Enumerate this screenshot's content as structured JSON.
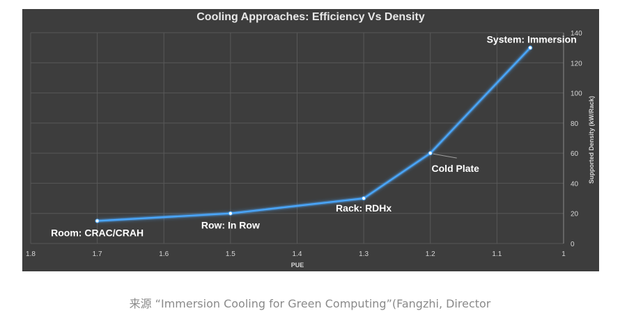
{
  "chart_data": {
    "type": "line",
    "title": "Cooling Approaches: Efficiency Vs Density",
    "xlabel": "PUE",
    "ylabel": "Supported Density (kW/Rack)",
    "xlim": [
      1.8,
      1.0
    ],
    "ylim": [
      0,
      140
    ],
    "x_ticks": [
      "1.8",
      "1.7",
      "1.6",
      "1.5",
      "1.4",
      "1.3",
      "1.2",
      "1.1",
      "1"
    ],
    "y_ticks": [
      "0",
      "20",
      "40",
      "60",
      "80",
      "100",
      "120",
      "140"
    ],
    "grid": true,
    "series": [
      {
        "name": "Cooling Approaches",
        "points": [
          {
            "x": 1.7,
            "y": 15,
            "label": "Room: CRAC/CRAH"
          },
          {
            "x": 1.5,
            "y": 20,
            "label": "Row: In Row"
          },
          {
            "x": 1.3,
            "y": 30,
            "label": "Rack: RDHx"
          },
          {
            "x": 1.2,
            "y": 60,
            "label": "Cold Plate"
          },
          {
            "x": 1.05,
            "y": 130,
            "label": "System: Immersion"
          }
        ]
      }
    ],
    "colors": {
      "line": "#4aa8ff",
      "background": "#3d3d3d",
      "grid": "#585858"
    }
  },
  "caption": "来源 “Immersion Cooling for Green Computing”(Fangzhi, Director"
}
